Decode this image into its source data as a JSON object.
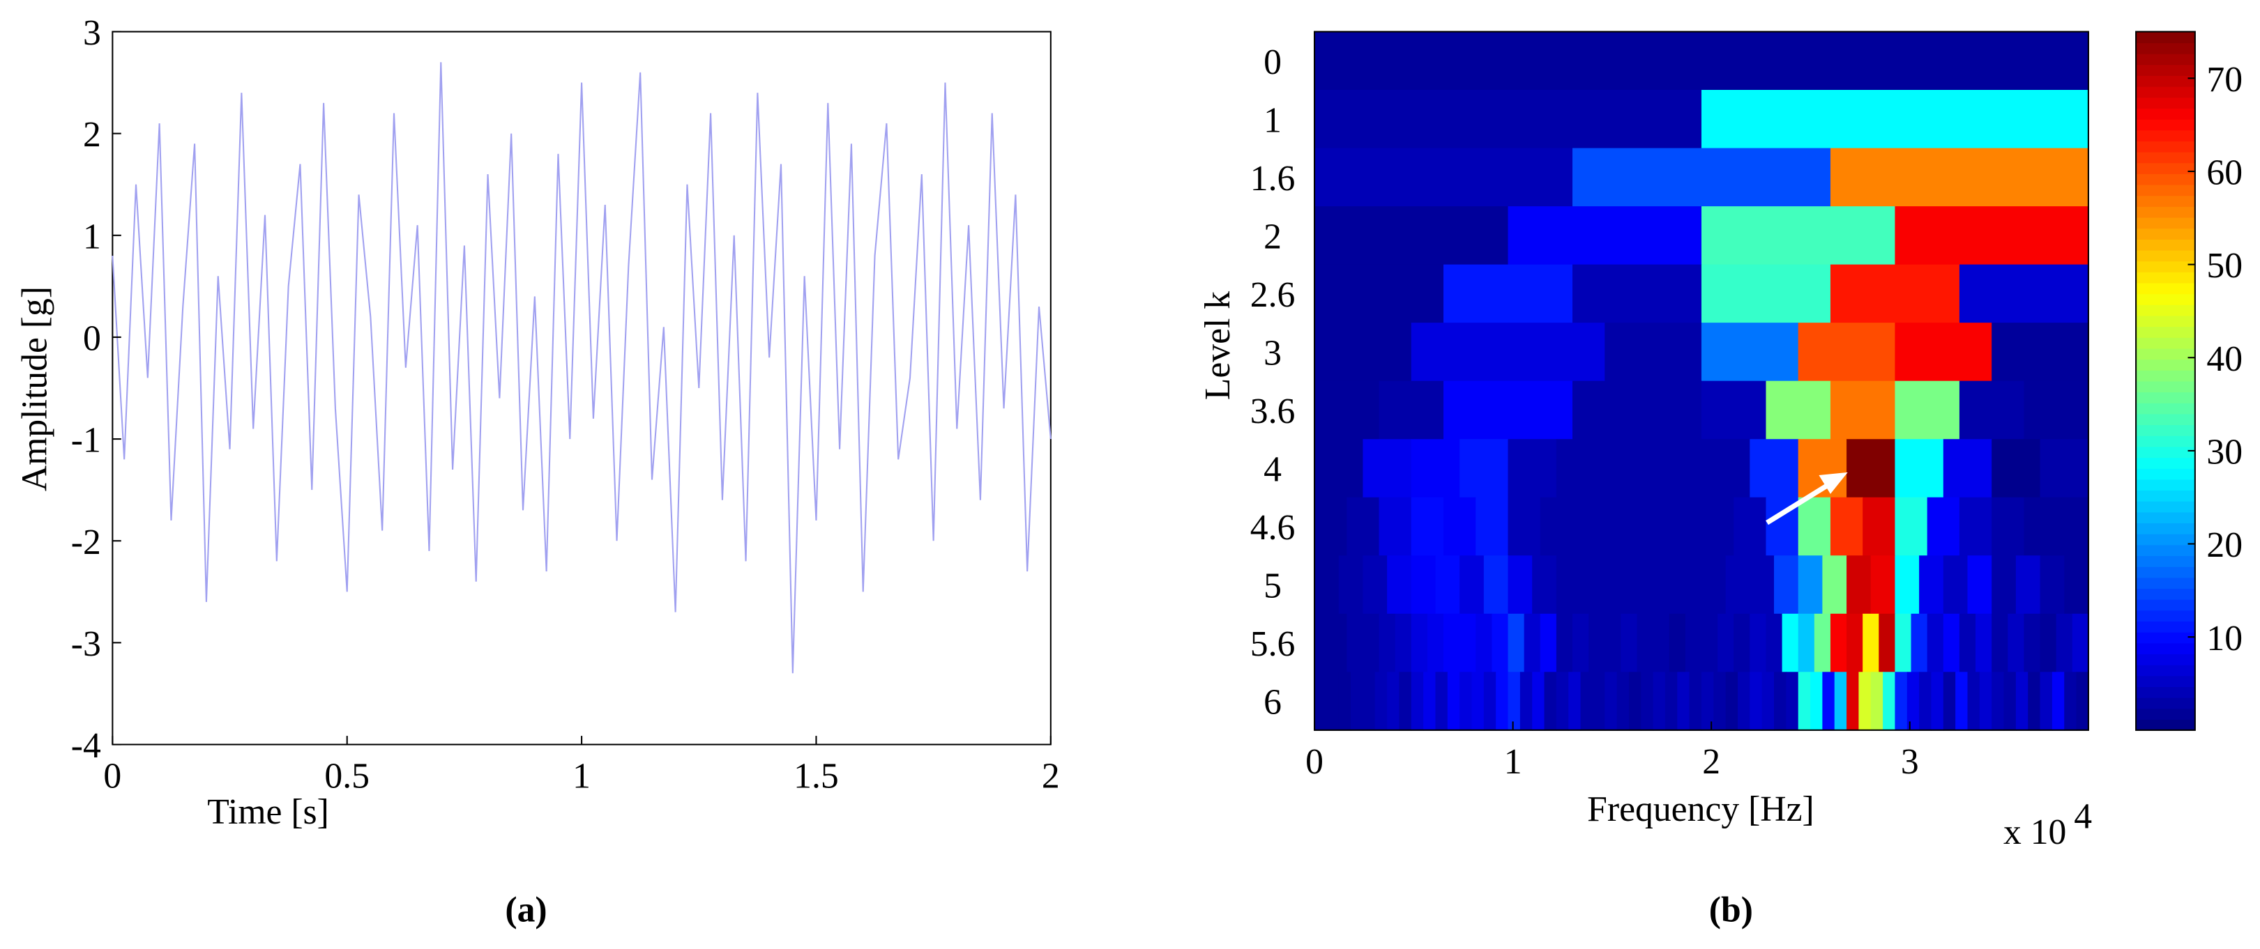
{
  "chart_data": [
    {
      "type": "line",
      "xlabel": "Time [s]",
      "ylabel": "Amplitude [g]",
      "panel_label": "(a)",
      "xlim": [
        0,
        2
      ],
      "ylim": [
        -4,
        3
      ],
      "xticks": [
        0,
        0.5,
        1,
        1.5,
        2
      ],
      "yticks": [
        -4,
        -3,
        -2,
        -1,
        0,
        1,
        2,
        3
      ],
      "x": [
        0,
        0.025,
        0.05,
        0.075,
        0.1,
        0.125,
        0.15,
        0.175,
        0.2,
        0.225,
        0.25,
        0.275,
        0.3,
        0.325,
        0.35,
        0.375,
        0.4,
        0.425,
        0.45,
        0.475,
        0.5,
        0.525,
        0.55,
        0.575,
        0.6,
        0.625,
        0.65,
        0.675,
        0.7,
        0.725,
        0.75,
        0.775,
        0.8,
        0.825,
        0.85,
        0.875,
        0.9,
        0.925,
        0.95,
        0.975,
        1,
        1.025,
        1.05,
        1.075,
        1.1,
        1.125,
        1.15,
        1.175,
        1.2,
        1.225,
        1.25,
        1.275,
        1.3,
        1.325,
        1.35,
        1.375,
        1.4,
        1.425,
        1.45,
        1.475,
        1.5,
        1.525,
        1.55,
        1.575,
        1.6,
        1.625,
        1.65,
        1.675,
        1.7,
        1.725,
        1.75,
        1.775,
        1.8,
        1.825,
        1.85,
        1.875,
        1.9,
        1.925,
        1.95,
        1.975,
        2
      ],
      "series": [
        {
          "color": "#a0a0f0",
          "values": [
            0.8,
            -1.2,
            1.5,
            -0.4,
            2.1,
            -1.8,
            0.3,
            1.9,
            -2.6,
            0.6,
            -1.1,
            2.4,
            -0.9,
            1.2,
            -2.2,
            0.5,
            1.7,
            -1.5,
            2.3,
            -0.7,
            -2.5,
            1.4,
            0.2,
            -1.9,
            2.2,
            -0.3,
            1.1,
            -2.1,
            2.7,
            -1.3,
            0.9,
            -2.4,
            1.6,
            -0.6,
            2.0,
            -1.7,
            0.4,
            -2.3,
            1.8,
            -1.0,
            2.5,
            -0.8,
            1.3,
            -2.0,
            0.7,
            2.6,
            -1.4,
            0.1,
            -2.7,
            1.5,
            -0.5,
            2.2,
            -1.6,
            1.0,
            -2.2,
            2.4,
            -0.2,
            1.7,
            -3.3,
            0.6,
            -1.8,
            2.3,
            -1.1,
            1.9,
            -2.5,
            0.8,
            2.1,
            -1.2,
            -0.4,
            1.6,
            -2.0,
            2.5,
            -0.9,
            1.1,
            -1.6,
            2.2,
            -0.7,
            1.4,
            -2.3,
            0.3,
            -1.0
          ]
        }
      ]
    },
    {
      "type": "heatmap",
      "xlabel": "Frequency [Hz]",
      "ylabel": "Level k",
      "panel_label": "(b)",
      "x_exponent": {
        "base": "x 10",
        "power": "4"
      },
      "xlim": [
        0,
        3.9
      ],
      "xticks": [
        0,
        1,
        2,
        3
      ],
      "colormap": "jet",
      "clim": [
        0,
        75
      ],
      "cticks": [
        10,
        20,
        30,
        40,
        50,
        60,
        70
      ],
      "y_categories": [
        "0",
        "1",
        "1.6",
        "2",
        "2.6",
        "3",
        "3.6",
        "4",
        "4.6",
        "5",
        "5.6",
        "6"
      ],
      "z": [
        [
          2
        ],
        [
          3,
          28
        ],
        [
          4,
          15,
          56
        ],
        [
          2,
          9,
          33,
          66
        ],
        [
          2,
          11,
          4,
          32,
          64,
          6
        ],
        [
          2,
          7,
          7,
          3,
          18,
          60,
          66,
          2
        ],
        [
          2,
          3,
          9,
          9,
          3,
          3,
          4,
          38,
          57,
          37,
          3,
          2
        ],
        [
          2,
          8,
          9,
          11,
          4,
          3,
          3,
          3,
          3,
          12,
          57,
          75,
          28,
          8,
          1,
          3
        ],
        [
          2,
          3,
          7,
          10,
          9,
          11,
          4,
          3,
          3,
          3,
          3,
          3,
          3,
          4,
          12,
          36,
          62,
          68,
          30,
          9,
          5,
          3,
          2,
          2
        ],
        [
          2,
          3,
          4,
          8,
          9,
          10,
          7,
          12,
          8,
          4,
          3,
          3,
          3,
          3,
          3,
          3,
          3,
          4,
          4,
          14,
          20,
          37,
          69,
          67,
          28,
          8,
          5,
          9,
          3,
          6,
          3,
          2
        ],
        [
          2,
          2,
          3,
          3,
          4,
          5,
          7,
          8,
          9,
          9,
          8,
          10,
          14,
          6,
          9,
          3,
          4,
          3,
          3,
          4,
          3,
          3,
          2,
          3,
          3,
          4,
          3,
          5,
          4,
          28,
          24,
          36,
          66,
          68,
          48,
          70,
          30,
          12,
          6,
          9,
          4,
          7,
          3,
          5,
          3,
          2,
          4,
          6
        ],
        [
          2,
          2,
          2,
          3,
          3,
          4,
          5,
          3,
          6,
          8,
          5,
          9,
          7,
          8,
          6,
          10,
          12,
          5,
          8,
          3,
          4,
          6,
          3,
          3,
          4,
          3,
          2,
          3,
          4,
          3,
          5,
          3,
          4,
          3,
          2,
          4,
          6,
          5,
          3,
          4,
          30,
          28,
          10,
          24,
          68,
          44,
          42,
          30,
          12,
          8,
          5,
          7,
          3,
          10,
          4,
          6,
          4,
          3,
          6,
          2,
          5,
          9,
          3,
          2
        ]
      ]
    }
  ]
}
